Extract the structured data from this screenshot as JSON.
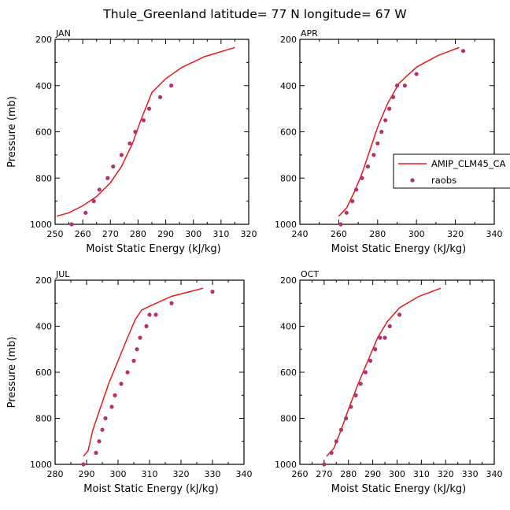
{
  "suptitle": "Thule_Greenland  latitude= 77 N longitude= 67 W",
  "colors": {
    "model": "#e41a1c",
    "obs": "#b5336b",
    "axis": "#000000"
  },
  "legend": {
    "model_label": "AMIP_CLM45_CA",
    "obs_label": "raobs",
    "placement": "right, inside APR panel, clipped"
  },
  "chart_data": [
    {
      "type": "line",
      "title": "JAN",
      "xlabel": "Moist Static Energy (kJ/kg)",
      "ylabel": "Pressure (mb)",
      "xlim": [
        250,
        320
      ],
      "ylim": [
        1000,
        200
      ],
      "xticks": [
        250,
        260,
        270,
        280,
        290,
        300,
        310,
        320
      ],
      "yticks": [
        200,
        400,
        600,
        800,
        1000
      ],
      "model": {
        "x": [
          250.5,
          255,
          260,
          265,
          270,
          274,
          278,
          281,
          285,
          290,
          296,
          304,
          315
        ],
        "y": [
          965,
          950,
          920,
          880,
          820,
          750,
          650,
          550,
          430,
          370,
          320,
          275,
          235
        ]
      },
      "obs": {
        "x": [
          256,
          261,
          264,
          266,
          269,
          271,
          274,
          277,
          279,
          282,
          284,
          288,
          292
        ],
        "y": [
          1000,
          950,
          900,
          850,
          800,
          750,
          700,
          650,
          600,
          550,
          500,
          450,
          400
        ]
      }
    },
    {
      "type": "line",
      "title": "APR",
      "xlabel": "Moist Static Energy (kJ/kg)",
      "ylabel": "",
      "xlim": [
        240,
        340
      ],
      "ylim": [
        1000,
        200
      ],
      "xticks": [
        240,
        260,
        280,
        300,
        320,
        340
      ],
      "yticks": [
        200,
        400,
        600,
        800,
        1000
      ],
      "model": {
        "x": [
          260,
          264,
          268,
          272,
          276,
          280,
          285,
          291,
          300,
          311,
          322
        ],
        "y": [
          965,
          930,
          860,
          780,
          680,
          580,
          480,
          390,
          320,
          270,
          235
        ]
      },
      "obs": {
        "x": [
          261,
          264,
          267,
          269,
          272,
          275,
          278,
          280,
          282,
          284,
          286,
          288,
          290,
          294,
          300,
          324
        ],
        "y": [
          1000,
          950,
          900,
          850,
          800,
          750,
          700,
          650,
          600,
          550,
          500,
          450,
          400,
          400,
          350,
          250
        ]
      }
    },
    {
      "type": "line",
      "title": "JUL",
      "xlabel": "Moist Static Energy (kJ/kg)",
      "ylabel": "Pressure (mb)",
      "xlim": [
        280,
        340
      ],
      "ylim": [
        1000,
        200
      ],
      "xticks": [
        280,
        290,
        300,
        310,
        320,
        330,
        340
      ],
      "yticks": [
        200,
        400,
        600,
        800,
        1000
      ],
      "model": {
        "x": [
          289,
          290.5,
          292,
          294.5,
          297,
          300,
          303,
          305.5,
          307.5,
          310.5,
          317,
          327
        ],
        "y": [
          965,
          940,
          850,
          750,
          650,
          550,
          450,
          370,
          330,
          310,
          270,
          235
        ]
      },
      "obs": {
        "x": [
          289,
          293,
          294,
          295,
          296,
          298,
          299,
          301,
          303,
          305,
          306,
          307,
          309,
          310,
          312,
          317,
          330
        ],
        "y": [
          1000,
          950,
          900,
          850,
          800,
          750,
          700,
          650,
          600,
          550,
          500,
          450,
          400,
          350,
          350,
          300,
          250
        ]
      }
    },
    {
      "type": "line",
      "title": "OCT",
      "xlabel": "Moist Static Energy (kJ/kg)",
      "ylabel": "",
      "xlim": [
        260,
        340
      ],
      "ylim": [
        1000,
        200
      ],
      "xticks": [
        260,
        270,
        280,
        290,
        300,
        310,
        320,
        330,
        340
      ],
      "yticks": [
        200,
        400,
        600,
        800,
        1000
      ],
      "model": {
        "x": [
          271,
          274,
          277,
          280,
          284,
          288,
          292,
          296,
          301,
          309,
          318
        ],
        "y": [
          965,
          930,
          850,
          760,
          650,
          550,
          450,
          380,
          320,
          270,
          235
        ]
      },
      "obs": {
        "x": [
          270,
          273,
          275,
          277,
          279,
          281,
          283,
          285,
          287,
          289,
          291,
          293,
          295,
          297,
          301
        ],
        "y": [
          1000,
          950,
          900,
          850,
          800,
          750,
          700,
          650,
          600,
          550,
          500,
          450,
          450,
          400,
          350
        ]
      }
    }
  ]
}
